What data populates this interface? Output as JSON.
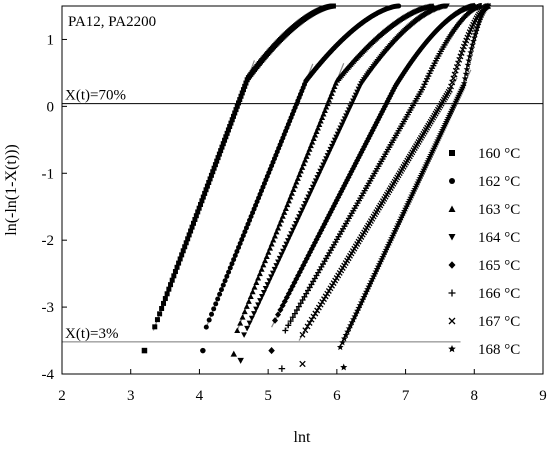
{
  "chart_data": {
    "type": "scatter",
    "title": "PA12, PA2200",
    "xlabel": "lnt",
    "ylabel": "ln(-ln(1-X(t)))",
    "xlim": [
      2,
      9
    ],
    "ylim": [
      -4,
      1.5
    ],
    "xticks": [
      2,
      3,
      4,
      5,
      6,
      7,
      8,
      9
    ],
    "yticks": [
      -4,
      -3,
      -2,
      -1,
      0,
      1
    ],
    "grid": false,
    "legend_position": "right",
    "reference_lines": [
      {
        "label": "X(t)=70%",
        "y": 0.04
      },
      {
        "label": "X(t)=3%",
        "y": -3.52
      }
    ],
    "series": [
      {
        "name": "160 °C",
        "marker": "square",
        "x_start": 3.35,
        "x_end": 5.95,
        "fit": [
          3.33,
          -3.35,
          4.55,
          0.0
        ],
        "outlier": [
          3.2,
          -3.65
        ]
      },
      {
        "name": "162 °C",
        "marker": "circle",
        "x_start": 4.1,
        "x_end": 6.9,
        "fit": [
          4.1,
          -3.3,
          5.4,
          0.0
        ],
        "outlier": [
          4.05,
          -3.65
        ]
      },
      {
        "name": "163 °C",
        "marker": "triangle-up",
        "x_start": 4.55,
        "x_end": 7.4,
        "fit": [
          4.55,
          -3.35,
          5.85,
          0.0
        ],
        "outlier": [
          4.5,
          -3.7
        ]
      },
      {
        "name": "164 °C",
        "marker": "triangle-down",
        "x_start": 4.65,
        "x_end": 7.6,
        "fit": [
          4.68,
          -3.35,
          6.2,
          0.0
        ],
        "outlier": [
          4.6,
          -3.8
        ]
      },
      {
        "name": "165 °C",
        "marker": "diamond",
        "x_start": 5.1,
        "x_end": 8.0,
        "fit": [
          5.05,
          -3.3,
          6.7,
          0.0
        ],
        "outlier": [
          5.05,
          -3.65
        ]
      },
      {
        "name": "166 °C",
        "marker": "plus",
        "x_start": 5.25,
        "x_end": 8.1,
        "fit": [
          5.25,
          -3.35,
          7.1,
          0.0
        ],
        "outlier": [
          5.2,
          -3.92
        ]
      },
      {
        "name": "167 °C",
        "marker": "x",
        "x_start": 5.5,
        "x_end": 8.2,
        "fit": [
          5.45,
          -3.5,
          7.5,
          0.0
        ],
        "outlier": [
          5.5,
          -3.85
        ]
      },
      {
        "name": "168 °C",
        "marker": "star",
        "x_start": 6.05,
        "x_end": 8.2,
        "fit": [
          6.05,
          -3.6,
          7.7,
          0.0
        ],
        "outlier": [
          6.1,
          -3.9
        ]
      }
    ]
  }
}
